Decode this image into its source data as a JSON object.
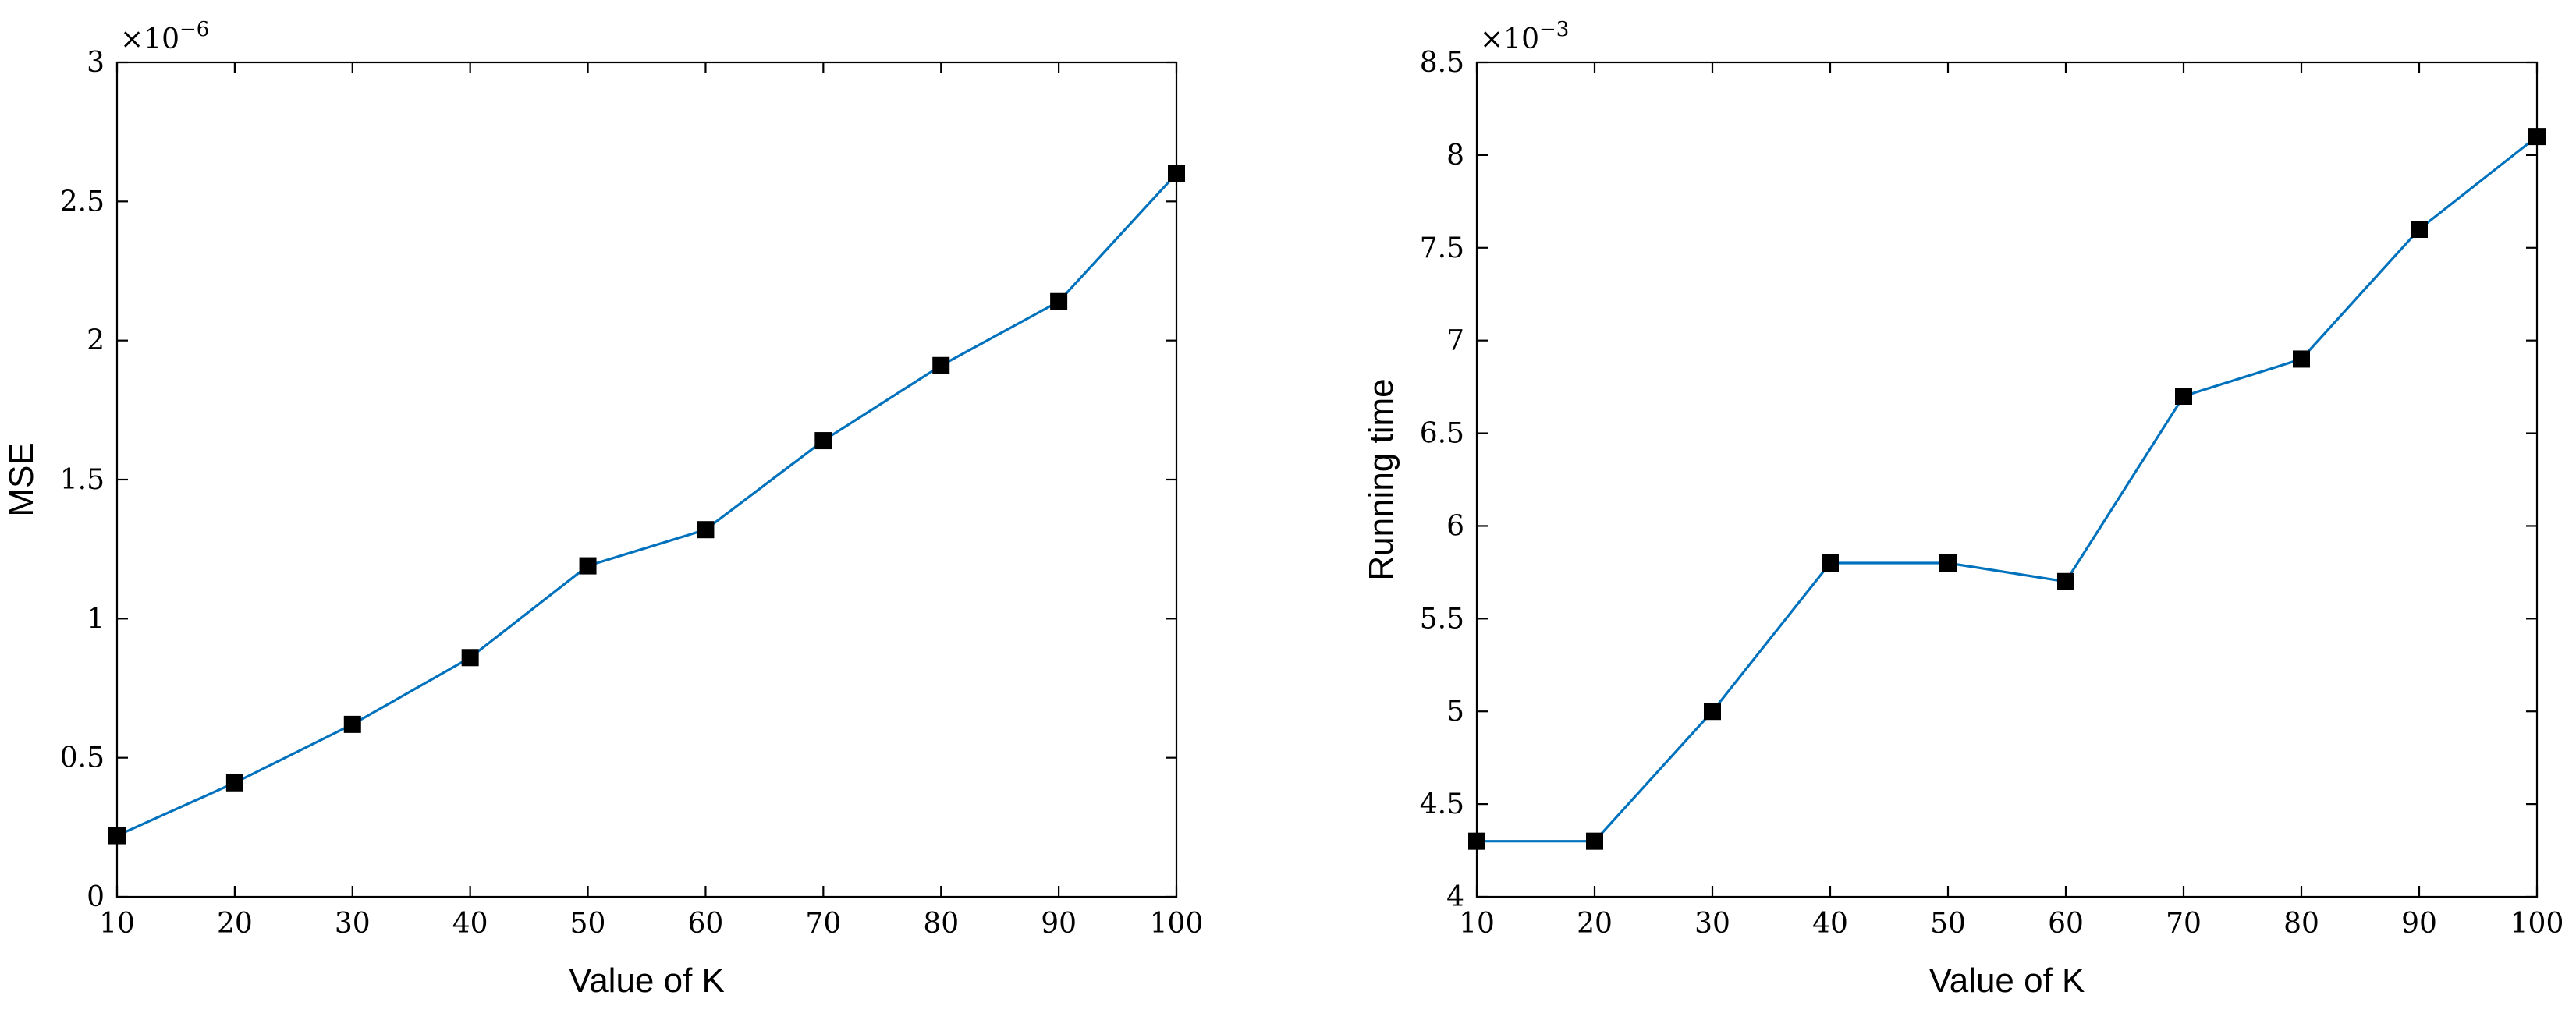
{
  "chart_data": [
    {
      "type": "line",
      "xlabel": "Value of K",
      "ylabel": "MSE",
      "y_exponent_base": "×10",
      "y_exponent_power": "−6",
      "xlim": [
        10,
        100
      ],
      "ylim": [
        0,
        3
      ],
      "x_ticks": [
        10,
        20,
        30,
        40,
        50,
        60,
        70,
        80,
        90,
        100
      ],
      "y_ticks": [
        0,
        0.5,
        1,
        1.5,
        2,
        2.5,
        3
      ],
      "grid": false,
      "line_color": "#0072bd",
      "marker": "square",
      "marker_color": "#000000",
      "x": [
        10,
        20,
        30,
        40,
        50,
        60,
        70,
        80,
        90,
        100
      ],
      "y": [
        0.22,
        0.41,
        0.62,
        0.86,
        1.19,
        1.32,
        1.64,
        1.91,
        2.14,
        2.6
      ]
    },
    {
      "type": "line",
      "xlabel": "Value of K",
      "ylabel": "Running time",
      "y_exponent_base": "×10",
      "y_exponent_power": "−3",
      "xlim": [
        10,
        100
      ],
      "ylim": [
        4,
        8.5
      ],
      "x_ticks": [
        10,
        20,
        30,
        40,
        50,
        60,
        70,
        80,
        90,
        100
      ],
      "y_ticks": [
        4,
        4.5,
        5,
        5.5,
        6,
        6.5,
        7,
        7.5,
        8,
        8.5
      ],
      "grid": false,
      "line_color": "#0072bd",
      "marker": "square",
      "marker_color": "#000000",
      "x": [
        10,
        20,
        30,
        40,
        50,
        60,
        70,
        80,
        90,
        100
      ],
      "y": [
        4.3,
        4.3,
        5.0,
        5.8,
        5.8,
        5.7,
        6.7,
        6.9,
        7.6,
        8.1
      ]
    }
  ]
}
